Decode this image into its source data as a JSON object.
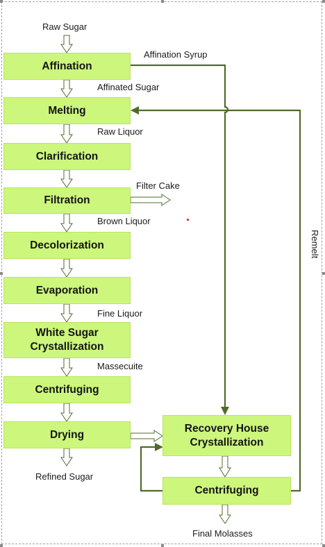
{
  "boxes": {
    "affination": "Affination",
    "melting": "Melting",
    "clarification": "Clarification",
    "filtration": "Filtration",
    "decolorization": "Decolorization",
    "evaporation": "Evaporation",
    "white_sugar_crystallization": "White Sugar\nCrystallization",
    "centrifuging": "Centrifuging",
    "drying": "Drying",
    "recovery_house_crystallization": "Recovery House\nCrystallization",
    "recovery_centrifuging": "Centrifuging"
  },
  "labels": {
    "raw_sugar": "Raw Sugar",
    "affination_syrup": "Affination Syrup",
    "affinated_sugar": "Affinated Sugar",
    "raw_liquor": "Raw Liquor",
    "filter_cake": "Filter Cake",
    "brown_liquor": "Brown Liquor",
    "fine_liquor": "Fine Liquor",
    "massecuite": "Massecuite",
    "refined_sugar": "Refined Sugar",
    "remelt": "Remelt",
    "final_molasses": "Final Molasses"
  },
  "colors": {
    "box_fill": "#ccf67c",
    "line": "#4f6b2a"
  }
}
